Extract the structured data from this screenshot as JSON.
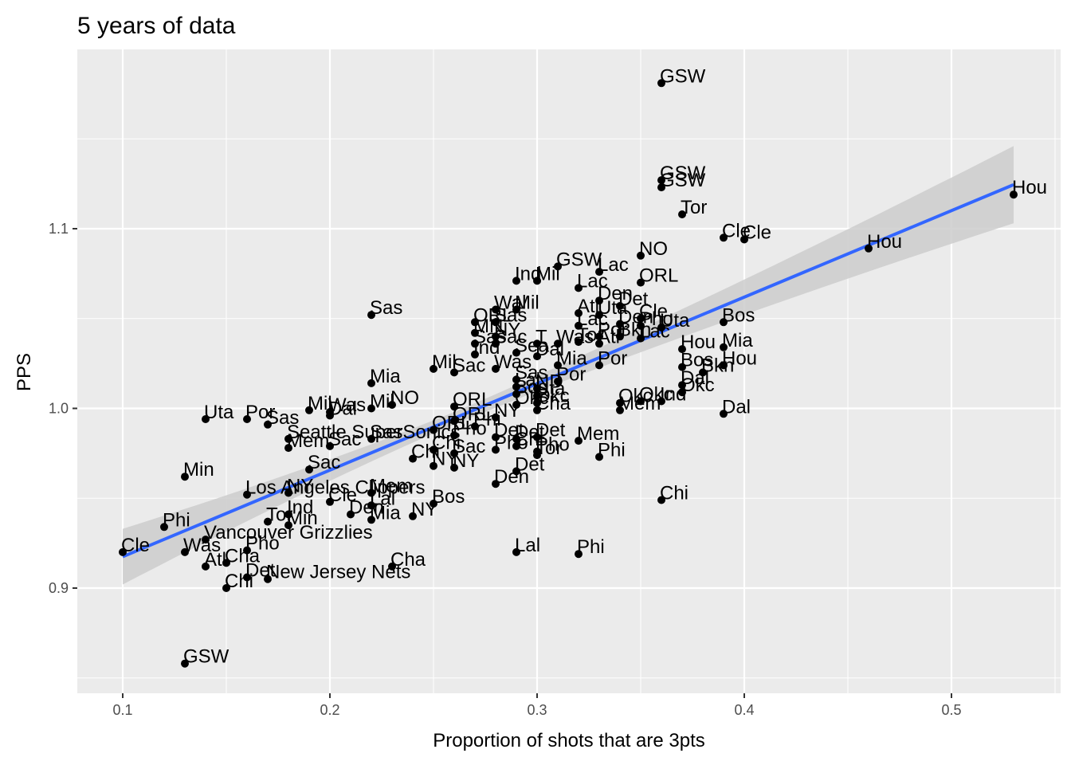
{
  "chart_data": {
    "type": "scatter",
    "title": "5 years of data",
    "xlabel": "Proportion of shots that are 3pts",
    "ylabel": "PPS",
    "xlim": [
      0.08,
      0.55
    ],
    "ylim": [
      0.84,
      1.205
    ],
    "xticks": [
      0.1,
      0.2,
      0.3,
      0.4,
      0.5
    ],
    "xtick_labels": [
      "0.1",
      "0.2",
      "0.3",
      "0.4",
      "0.5"
    ],
    "yticks": [
      0.9,
      1.0,
      1.1
    ],
    "ytick_labels": [
      "0.9",
      "1.0",
      "1.1"
    ],
    "grid": true,
    "background": "#ebebeb",
    "point_color": "#000000",
    "trend_line": {
      "method": "linear",
      "color": "#3366ff",
      "band_color": "#cccccc",
      "x": [
        0.1,
        0.53
      ],
      "y": [
        0.9175,
        1.1245
      ],
      "band_halfwidth": [
        0.0155,
        0.0215
      ],
      "band_mid_halfwidth": 0.0035,
      "band_mid_x": 0.26
    },
    "points": [
      {
        "x": 0.36,
        "y": 1.181,
        "label": "GSW"
      },
      {
        "x": 0.36,
        "y": 1.127,
        "label": "GSW"
      },
      {
        "x": 0.36,
        "y": 1.123,
        "label": "GSW"
      },
      {
        "x": 0.53,
        "y": 1.119,
        "label": "Hou"
      },
      {
        "x": 0.37,
        "y": 1.108,
        "label": "Tor"
      },
      {
        "x": 0.39,
        "y": 1.095,
        "label": "Cle"
      },
      {
        "x": 0.4,
        "y": 1.094,
        "label": "Cle"
      },
      {
        "x": 0.46,
        "y": 1.089,
        "label": "Hou"
      },
      {
        "x": 0.35,
        "y": 1.085,
        "label": "NO"
      },
      {
        "x": 0.31,
        "y": 1.079,
        "label": "GSW"
      },
      {
        "x": 0.33,
        "y": 1.076,
        "label": "Lac"
      },
      {
        "x": 0.29,
        "y": 1.071,
        "label": "Ind"
      },
      {
        "x": 0.3,
        "y": 1.071,
        "label": "Mil"
      },
      {
        "x": 0.35,
        "y": 1.07,
        "label": "ORL"
      },
      {
        "x": 0.32,
        "y": 1.067,
        "label": "Lac"
      },
      {
        "x": 0.33,
        "y": 1.06,
        "label": "Den"
      },
      {
        "x": 0.34,
        "y": 1.057,
        "label": "Det"
      },
      {
        "x": 0.28,
        "y": 1.055,
        "label": "Wal"
      },
      {
        "x": 0.29,
        "y": 1.055,
        "label": "Mil"
      },
      {
        "x": 0.22,
        "y": 1.052,
        "label": "Sas"
      },
      {
        "x": 0.32,
        "y": 1.053,
        "label": "Atl"
      },
      {
        "x": 0.33,
        "y": 1.052,
        "label": "Uta"
      },
      {
        "x": 0.35,
        "y": 1.05,
        "label": "Cle"
      },
      {
        "x": 0.27,
        "y": 1.048,
        "label": "ORL"
      },
      {
        "x": 0.28,
        "y": 1.048,
        "label": "Sas"
      },
      {
        "x": 0.39,
        "y": 1.048,
        "label": "Bos"
      },
      {
        "x": 0.32,
        "y": 1.046,
        "label": "Lac"
      },
      {
        "x": 0.34,
        "y": 1.047,
        "label": "Den"
      },
      {
        "x": 0.35,
        "y": 1.046,
        "label": "Pho"
      },
      {
        "x": 0.36,
        "y": 1.045,
        "label": "Uta"
      },
      {
        "x": 0.27,
        "y": 1.042,
        "label": "MN"
      },
      {
        "x": 0.28,
        "y": 1.04,
        "label": "NY"
      },
      {
        "x": 0.33,
        "y": 1.04,
        "label": "Por"
      },
      {
        "x": 0.34,
        "y": 1.04,
        "label": "Bkn"
      },
      {
        "x": 0.35,
        "y": 1.039,
        "label": "Lac"
      },
      {
        "x": 0.27,
        "y": 1.036,
        "label": "Sas"
      },
      {
        "x": 0.28,
        "y": 1.036,
        "label": "Sac"
      },
      {
        "x": 0.3,
        "y": 1.036,
        "label": "T"
      },
      {
        "x": 0.31,
        "y": 1.036,
        "label": "Was"
      },
      {
        "x": 0.32,
        "y": 1.037,
        "label": "Tor"
      },
      {
        "x": 0.33,
        "y": 1.036,
        "label": "Atl"
      },
      {
        "x": 0.37,
        "y": 1.033,
        "label": "Hou"
      },
      {
        "x": 0.39,
        "y": 1.034,
        "label": "Mia"
      },
      {
        "x": 0.27,
        "y": 1.03,
        "label": "Ind"
      },
      {
        "x": 0.29,
        "y": 1.031,
        "label": "Sea"
      },
      {
        "x": 0.3,
        "y": 1.029,
        "label": "Dal"
      },
      {
        "x": 0.25,
        "y": 1.022,
        "label": "Mil"
      },
      {
        "x": 0.26,
        "y": 1.02,
        "label": "Sac"
      },
      {
        "x": 0.28,
        "y": 1.022,
        "label": "Was"
      },
      {
        "x": 0.31,
        "y": 1.024,
        "label": "Mia"
      },
      {
        "x": 0.33,
        "y": 1.024,
        "label": "Por"
      },
      {
        "x": 0.37,
        "y": 1.023,
        "label": "Bos"
      },
      {
        "x": 0.39,
        "y": 1.024,
        "label": "Hou"
      },
      {
        "x": 0.38,
        "y": 1.02,
        "label": "Bkn"
      },
      {
        "x": 0.22,
        "y": 1.014,
        "label": "Mia"
      },
      {
        "x": 0.29,
        "y": 1.016,
        "label": "Sas"
      },
      {
        "x": 0.31,
        "y": 1.015,
        "label": "Por"
      },
      {
        "x": 0.37,
        "y": 1.013,
        "label": "Dal"
      },
      {
        "x": 0.29,
        "y": 1.012,
        "label": "Lal"
      },
      {
        "x": 0.3,
        "y": 1.011,
        "label": "ND"
      },
      {
        "x": 0.37,
        "y": 1.009,
        "label": "Okc"
      },
      {
        "x": 0.29,
        "y": 1.008,
        "label": "Bos"
      },
      {
        "x": 0.3,
        "y": 1.007,
        "label": "Uta"
      },
      {
        "x": 0.35,
        "y": 1.004,
        "label": "Okc"
      },
      {
        "x": 0.36,
        "y": 1.004,
        "label": "Ind"
      },
      {
        "x": 0.34,
        "y": 1.003,
        "label": "Okc"
      },
      {
        "x": 0.29,
        "y": 1.002,
        "label": "Okc"
      },
      {
        "x": 0.3,
        "y": 1.003,
        "label": "Okc"
      },
      {
        "x": 0.23,
        "y": 1.002,
        "label": "NO"
      },
      {
        "x": 0.26,
        "y": 1.001,
        "label": "ORL"
      },
      {
        "x": 0.22,
        "y": 1.0,
        "label": "Mil"
      },
      {
        "x": 0.19,
        "y": 0.999,
        "label": "Mil"
      },
      {
        "x": 0.2,
        "y": 0.998,
        "label": "Was"
      },
      {
        "x": 0.34,
        "y": 0.999,
        "label": "Mem"
      },
      {
        "x": 0.3,
        "y": 0.999,
        "label": "Cha"
      },
      {
        "x": 0.39,
        "y": 0.997,
        "label": "Dal"
      },
      {
        "x": 0.14,
        "y": 0.994,
        "label": "Uta"
      },
      {
        "x": 0.16,
        "y": 0.994,
        "label": "Por"
      },
      {
        "x": 0.17,
        "y": 0.991,
        "label": "Sas"
      },
      {
        "x": 0.2,
        "y": 0.996,
        "label": "Dal"
      },
      {
        "x": 0.28,
        "y": 0.995,
        "label": "NY"
      },
      {
        "x": 0.26,
        "y": 0.993,
        "label": "ORL"
      },
      {
        "x": 0.27,
        "y": 0.99,
        "label": "Phi"
      },
      {
        "x": 0.25,
        "y": 0.988,
        "label": "ORL"
      },
      {
        "x": 0.18,
        "y": 0.983,
        "label": "Seattle SuperSonics"
      },
      {
        "x": 0.22,
        "y": 0.983,
        "label": "Sas"
      },
      {
        "x": 0.26,
        "y": 0.985,
        "label": "Pho"
      },
      {
        "x": 0.28,
        "y": 0.984,
        "label": "Det"
      },
      {
        "x": 0.29,
        "y": 0.983,
        "label": "Det"
      },
      {
        "x": 0.3,
        "y": 0.984,
        "label": "Det"
      },
      {
        "x": 0.32,
        "y": 0.982,
        "label": "Mem"
      },
      {
        "x": 0.18,
        "y": 0.978,
        "label": "Mem"
      },
      {
        "x": 0.2,
        "y": 0.979,
        "label": "Sac"
      },
      {
        "x": 0.25,
        "y": 0.977,
        "label": "Chi"
      },
      {
        "x": 0.26,
        "y": 0.975,
        "label": "Sac"
      },
      {
        "x": 0.28,
        "y": 0.977,
        "label": "Pho"
      },
      {
        "x": 0.29,
        "y": 0.979,
        "label": "Chi"
      },
      {
        "x": 0.3,
        "y": 0.976,
        "label": "Pho"
      },
      {
        "x": 0.3,
        "y": 0.974,
        "label": "Tor"
      },
      {
        "x": 0.24,
        "y": 0.972,
        "label": "Chi"
      },
      {
        "x": 0.33,
        "y": 0.973,
        "label": "Phi"
      },
      {
        "x": 0.25,
        "y": 0.968,
        "label": "NY"
      },
      {
        "x": 0.26,
        "y": 0.967,
        "label": "NY"
      },
      {
        "x": 0.19,
        "y": 0.966,
        "label": "Sac"
      },
      {
        "x": 0.29,
        "y": 0.965,
        "label": "Det"
      },
      {
        "x": 0.13,
        "y": 0.962,
        "label": "Min"
      },
      {
        "x": 0.28,
        "y": 0.958,
        "label": "Den"
      },
      {
        "x": 0.16,
        "y": 0.952,
        "label": "Los Angeles Clippers"
      },
      {
        "x": 0.18,
        "y": 0.953,
        "label": "NY"
      },
      {
        "x": 0.22,
        "y": 0.953,
        "label": "Mem"
      },
      {
        "x": 0.2,
        "y": 0.948,
        "label": "Cle"
      },
      {
        "x": 0.22,
        "y": 0.946,
        "label": "Lal"
      },
      {
        "x": 0.25,
        "y": 0.947,
        "label": "Bos"
      },
      {
        "x": 0.36,
        "y": 0.949,
        "label": "Chi"
      },
      {
        "x": 0.18,
        "y": 0.941,
        "label": "Ind"
      },
      {
        "x": 0.21,
        "y": 0.941,
        "label": "Den"
      },
      {
        "x": 0.24,
        "y": 0.94,
        "label": "NY"
      },
      {
        "x": 0.17,
        "y": 0.937,
        "label": "Tor"
      },
      {
        "x": 0.18,
        "y": 0.935,
        "label": "Min"
      },
      {
        "x": 0.22,
        "y": 0.938,
        "label": "Mia"
      },
      {
        "x": 0.12,
        "y": 0.934,
        "label": "Phi"
      },
      {
        "x": 0.14,
        "y": 0.927,
        "label": "Vancouver Grizzlies"
      },
      {
        "x": 0.16,
        "y": 0.921,
        "label": "Pho"
      },
      {
        "x": 0.1,
        "y": 0.92,
        "label": "Cle"
      },
      {
        "x": 0.13,
        "y": 0.92,
        "label": "Was"
      },
      {
        "x": 0.29,
        "y": 0.92,
        "label": "Lal"
      },
      {
        "x": 0.32,
        "y": 0.919,
        "label": "Phi"
      },
      {
        "x": 0.15,
        "y": 0.914,
        "label": "Cha"
      },
      {
        "x": 0.14,
        "y": 0.912,
        "label": "Atl"
      },
      {
        "x": 0.23,
        "y": 0.912,
        "label": "Cha"
      },
      {
        "x": 0.16,
        "y": 0.906,
        "label": "Det"
      },
      {
        "x": 0.17,
        "y": 0.905,
        "label": "New Jersey Nets"
      },
      {
        "x": 0.15,
        "y": 0.9,
        "label": "Chi"
      },
      {
        "x": 0.13,
        "y": 0.858,
        "label": "GSW"
      }
    ]
  }
}
